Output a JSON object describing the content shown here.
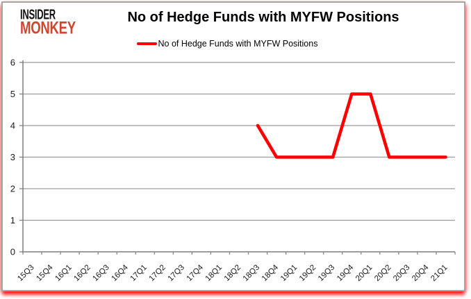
{
  "logo": {
    "line1": "INSIDER",
    "line2": "MONKEY"
  },
  "header": {
    "title": "No of Hedge Funds with MYFW Positions"
  },
  "legend": {
    "label": "No of Hedge Funds with MYFW Positions"
  },
  "colors": {
    "series_red": "#ff0000",
    "logo_red": "#d0452e",
    "grid": "#9a9a9a",
    "axis": "#7f7f7f",
    "label": "#1a1a1a",
    "title": "#000000",
    "frame_border": "#a6a6a6",
    "shadow_red": "#ff0000"
  },
  "chart_data": {
    "type": "line",
    "title": "No of Hedge Funds with MYFW Positions",
    "categories": [
      "15Q3",
      "15Q4",
      "16Q1",
      "16Q2",
      "16Q3",
      "16Q4",
      "17Q1",
      "17Q2",
      "17Q3",
      "17Q4",
      "18Q1",
      "18Q2",
      "18Q3",
      "18Q4",
      "19Q1",
      "19Q2",
      "19Q3",
      "19Q4",
      "20Q1",
      "20Q2",
      "20Q3",
      "20Q4",
      "21Q1"
    ],
    "series": [
      {
        "name": "No of Hedge Funds with MYFW Positions",
        "color": "#ff0000",
        "values": [
          null,
          null,
          null,
          null,
          null,
          null,
          null,
          null,
          null,
          null,
          null,
          null,
          4,
          3,
          3,
          3,
          3,
          5,
          5,
          3,
          3,
          3,
          3
        ]
      }
    ],
    "xlabel": "",
    "ylabel": "",
    "ylim": [
      0,
      6
    ],
    "yticks": [
      0,
      1,
      2,
      3,
      4,
      5,
      6
    ],
    "grid": true,
    "legend_position": "top"
  }
}
